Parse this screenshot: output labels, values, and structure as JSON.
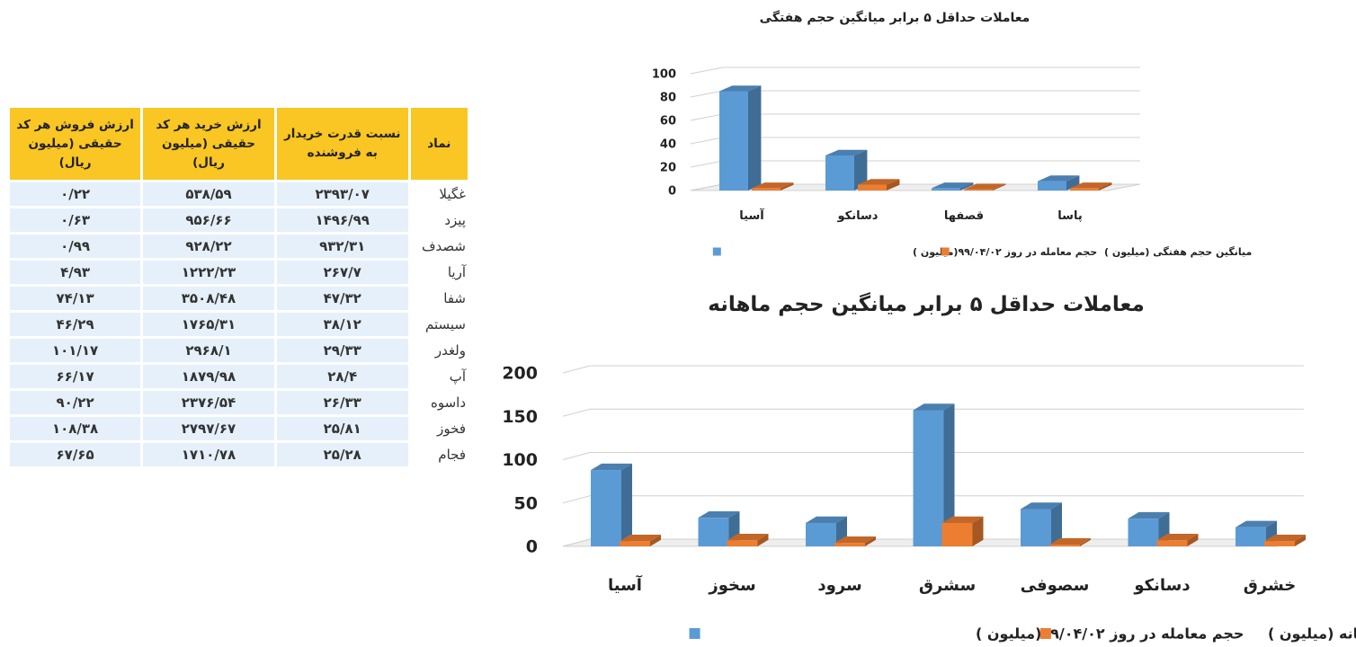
{
  "table": {
    "headers": [
      "نماد",
      "نسبت قدرت خریدار به فروشنده",
      "ارزش خرید هر کد حقیقی (میلیون ریال)",
      "ارزش فروش هر کد حقیقی (میلیون ریال)"
    ],
    "rows": [
      [
        "غگیلا",
        "۲۳۹۳/۰۷",
        "۵۳۸/۵۹",
        "۰/۲۲"
      ],
      [
        "پیزد",
        "۱۴۹۶/۹۹",
        "۹۵۶/۶۶",
        "۰/۶۳"
      ],
      [
        "شصدف",
        "۹۳۲/۳۱",
        "۹۲۸/۲۲",
        "۰/۹۹"
      ],
      [
        "آریا",
        "۲۶۷/۷",
        "۱۲۲۲/۲۳",
        "۴/۹۳"
      ],
      [
        "شفا",
        "۴۷/۳۲",
        "۳۵۰۸/۴۸",
        "۷۴/۱۳"
      ],
      [
        "سیستم",
        "۳۸/۱۲",
        "۱۷۶۵/۳۱",
        "۴۶/۲۹"
      ],
      [
        "ولغدر",
        "۲۹/۳۳",
        "۲۹۶۸/۱",
        "۱۰۱/۱۷"
      ],
      [
        "آپ",
        "۲۸/۴",
        "۱۸۷۹/۹۸",
        "۶۶/۱۷"
      ],
      [
        "داسوه",
        "۲۶/۳۳",
        "۲۳۷۶/۵۴",
        "۹۰/۲۲"
      ],
      [
        "فخوز",
        "۲۵/۸۱",
        "۲۷۹۷/۶۷",
        "۱۰۸/۳۸"
      ],
      [
        "فجام",
        "۲۵/۲۸",
        "۱۷۱۰/۷۸",
        "۶۷/۶۵"
      ]
    ]
  },
  "chart_data": [
    {
      "type": "bar",
      "title": "معاملات حداقل ۵ برابر میانگین حجم هفتگی",
      "categories": [
        "آسیا",
        "دسانکو",
        "قصفها",
        "پاسا"
      ],
      "series": [
        {
          "name": "حجم معامله در روز ۹۹/۰۴/۰۲(میلیون )",
          "values": [
            85,
            30,
            2,
            8
          ],
          "color": "#5b9bd5"
        },
        {
          "name": "میانگین حجم هفتگی (میلیون )",
          "values": [
            2,
            5,
            1,
            2
          ],
          "color": "#ed7d31"
        }
      ],
      "ylim": [
        0,
        100
      ],
      "yticks": [
        "0",
        "20",
        "40",
        "60",
        "80",
        "100"
      ],
      "grid": true,
      "legend": "bottom"
    },
    {
      "type": "bar",
      "title": "معاملات حداقل ۵ برابر میانگین حجم ماهانه",
      "categories": [
        "آسیا",
        "سخوز",
        "سرود",
        "سشرق",
        "سصوفی",
        "دسانکو",
        "خشرق"
      ],
      "series": [
        {
          "name": "حجم معامله در روز ۹۹/۰۴/۰۲(میلیون )",
          "values": [
            88,
            33,
            27,
            157,
            43,
            32,
            22
          ],
          "color": "#5b9bd5"
        },
        {
          "name": "میانگین حجم ماهانه (میلیون )",
          "values": [
            6,
            7,
            4,
            27,
            2,
            7,
            6
          ],
          "color": "#ed7d31"
        }
      ],
      "ylim": [
        0,
        200
      ],
      "yticks": [
        "0",
        "50",
        "100",
        "150",
        "200"
      ],
      "grid": true,
      "legend": "bottom"
    }
  ]
}
